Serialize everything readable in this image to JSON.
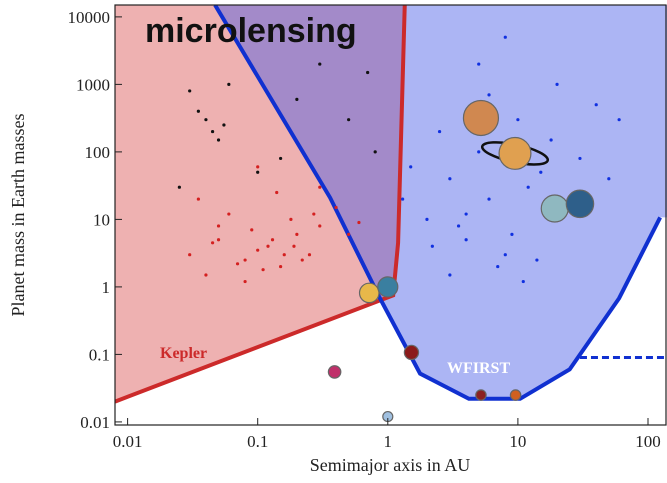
{
  "chart_data": {
    "type": "scatter",
    "title": "microlensing",
    "x_label": "Semimajor axis in AU",
    "y_label": "Planet mass in Earth masses",
    "log_x": true,
    "log_y": true,
    "xlim": [
      0.008,
      140
    ],
    "ylim": [
      0.009,
      15000
    ],
    "xticks": [
      0.01,
      0.1,
      1,
      10,
      100
    ],
    "yticks": [
      0.01,
      0.1,
      1,
      10,
      100,
      1000,
      10000
    ],
    "regions": [
      {
        "label": "Kepler",
        "color": "#cc2a2a",
        "fill": "rgba(215,70,70,0.42)",
        "side": "left",
        "x": [
          0.008,
          1.1,
          1.2,
          1.35
        ],
        "values": [
          0.02,
          0.75,
          4.5,
          15000
        ]
      },
      {
        "label": "WFIRST",
        "color": "#1030d0",
        "fill": "rgba(70,90,230,0.45)",
        "side": "right",
        "x": [
          0.047,
          0.36,
          0.87,
          1.77,
          4.2,
          10.4,
          25,
          60,
          124
        ],
        "values": [
          15000,
          21,
          0.68,
          0.052,
          0.022,
          0.022,
          0.06,
          0.68,
          10.7
        ],
        "dashed_x": [
          30,
          140
        ],
        "dashed_values": [
          0.09,
          0.09
        ]
      }
    ],
    "series": [
      {
        "color": "#d42020",
        "x": [
          0.03,
          0.05,
          0.08,
          0.12,
          0.2,
          0.3,
          0.15,
          0.06,
          0.1,
          0.04,
          0.25,
          0.4,
          0.09,
          0.07,
          0.18,
          0.13,
          0.035,
          0.5,
          0.11,
          0.22,
          0.045,
          0.16,
          0.3,
          0.6,
          0.08,
          0.14,
          0.19,
          0.05,
          0.27,
          0.1
        ],
        "values": [
          3,
          5,
          2.5,
          4,
          6,
          8,
          2,
          12,
          3.5,
          1.5,
          3,
          15,
          7,
          2.2,
          10,
          5,
          20,
          6,
          1.8,
          2.5,
          4.5,
          3,
          30,
          9,
          1.2,
          25,
          4,
          8,
          12,
          60
        ]
      },
      {
        "color": "#111111",
        "x": [
          0.04,
          0.05,
          0.03,
          0.045,
          0.06,
          0.1,
          0.3,
          0.5,
          0.8,
          0.2,
          0.035,
          0.055,
          0.15,
          0.7,
          0.025
        ],
        "values": [
          300,
          150,
          800,
          200,
          1000,
          50,
          2000,
          300,
          100,
          600,
          400,
          250,
          80,
          1500,
          30
        ]
      },
      {
        "color": "#1030e0",
        "x": [
          2,
          3,
          4,
          5,
          6,
          8,
          10,
          15,
          20,
          3.5,
          2.5,
          7,
          12,
          25,
          40,
          1.5,
          5,
          9,
          2.2,
          30,
          4,
          6,
          18,
          50,
          3,
          8,
          1.3,
          14,
          60,
          11
        ],
        "values": [
          10,
          40,
          5,
          100,
          20,
          3,
          300,
          50,
          1000,
          8,
          200,
          2,
          30,
          15,
          500,
          60,
          2000,
          6,
          4,
          80,
          12,
          700,
          150,
          40,
          1.5,
          5000,
          20,
          2.5,
          300,
          1.2
        ]
      }
    ],
    "planets": {
      "x": [
        0.39,
        0.72,
        1.0,
        1.52,
        5.2,
        9.5,
        19.2,
        30,
        1.0,
        5.2,
        9.6
      ],
      "values": [
        0.055,
        0.815,
        1,
        0.107,
        318,
        95,
        14.5,
        17,
        0.012,
        0.025,
        0.025
      ],
      "colors": [
        "#c0306a",
        "#e8b84a",
        "#3a7fa0",
        "#8b1a1a",
        "#d08850",
        "#e0a050",
        "#8fb8c0",
        "#2e5f8a",
        "#a0c0e0",
        "#8b2020",
        "#d06020"
      ]
    }
  }
}
